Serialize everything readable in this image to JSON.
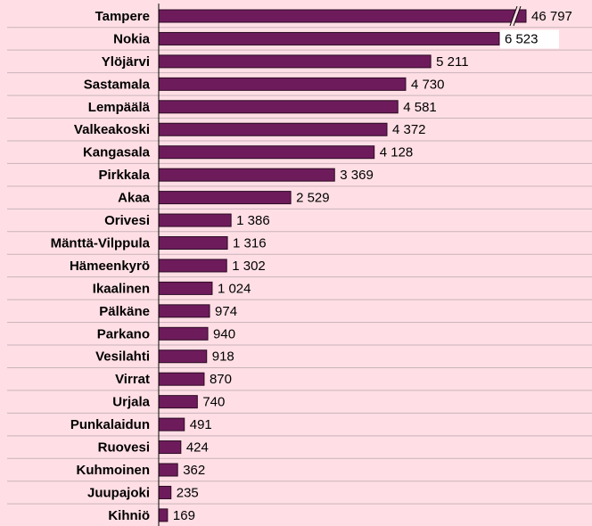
{
  "chart_data": {
    "type": "barh",
    "categories": [
      "Tampere",
      "Nokia",
      "Ylöjärvi",
      "Sastamala",
      "Lempäälä",
      "Valkeakoski",
      "Kangasala",
      "Pirkkala",
      "Akaa",
      "Orivesi",
      "Mänttä-Vilppula",
      "Hämeenkyrö",
      "Ikaalinen",
      "Pälkäne",
      "Parkano",
      "Vesilahti",
      "Virrat",
      "Urjala",
      "Punkalaidun",
      "Ruovesi",
      "Kuhmoinen",
      "Juupajoki",
      "Kihniö"
    ],
    "values": [
      46797,
      6523,
      5211,
      4730,
      4581,
      4372,
      4128,
      3369,
      2529,
      1386,
      1316,
      1302,
      1024,
      974,
      940,
      918,
      870,
      740,
      491,
      424,
      362,
      235,
      169
    ],
    "value_labels": [
      "46 797",
      "6 523",
      "5 211",
      "4 730",
      "4 581",
      "4 372",
      "4 128",
      "3 369",
      "2 529",
      "1 386",
      "1 316",
      "1 302",
      "1 024",
      "974",
      "940",
      "918",
      "870",
      "740",
      "491",
      "424",
      "362",
      "235",
      "169"
    ],
    "color": "#6e1b5c",
    "xlim": [
      0,
      8300
    ],
    "grid": true
  }
}
